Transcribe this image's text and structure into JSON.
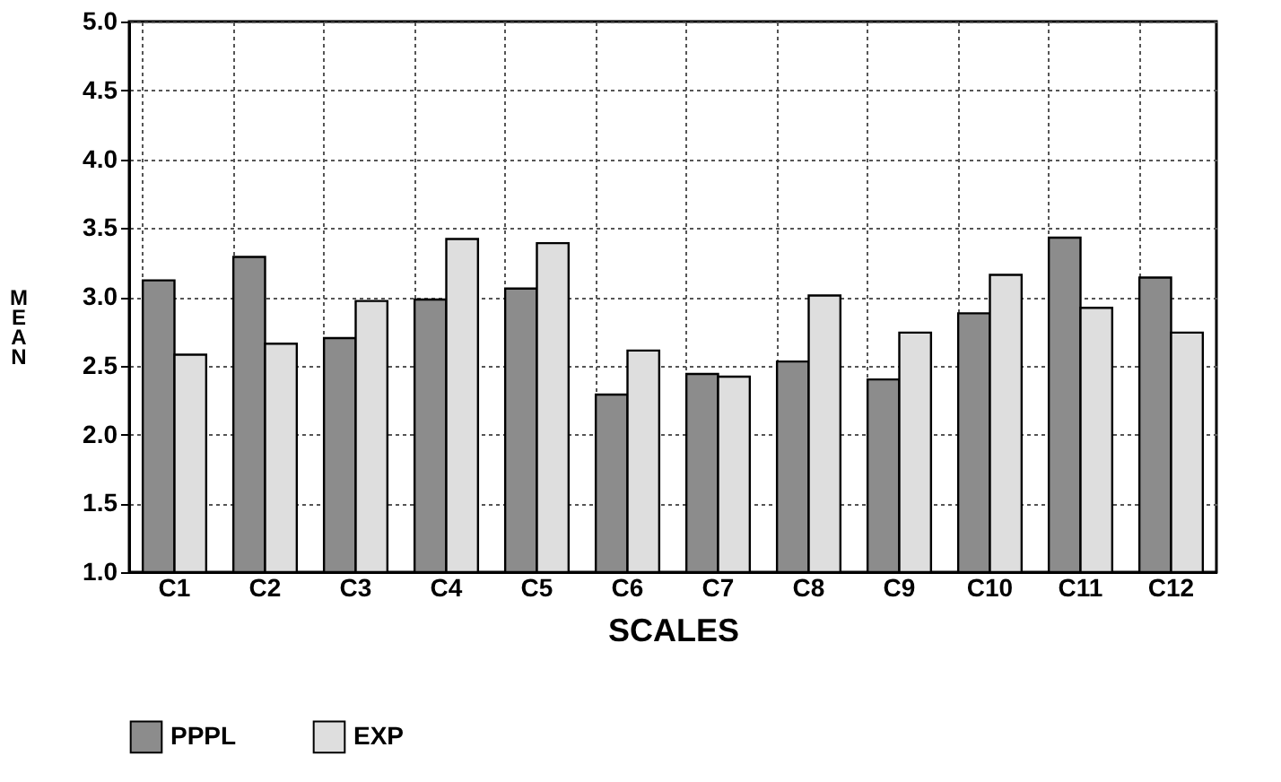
{
  "chart_data": {
    "type": "bar",
    "xlabel": "SCALES",
    "ylabel": "MEAN",
    "categories": [
      "C1",
      "C2",
      "C3",
      "C4",
      "C5",
      "C6",
      "C7",
      "C8",
      "C9",
      "C10",
      "C11",
      "C12"
    ],
    "series": [
      {
        "name": "PPPL",
        "color": "#8c8c8c",
        "values": [
          3.12,
          3.29,
          2.7,
          2.98,
          3.06,
          2.29,
          2.44,
          2.53,
          2.4,
          2.88,
          3.43,
          3.14
        ]
      },
      {
        "name": "EXP",
        "color": "#dedede",
        "values": [
          2.58,
          2.66,
          2.97,
          3.42,
          3.39,
          2.61,
          2.42,
          3.01,
          2.74,
          3.16,
          2.92,
          2.74
        ]
      }
    ],
    "ylim": [
      1.0,
      5.0
    ],
    "yticks": [
      {
        "value": 1,
        "label": "1.0"
      },
      {
        "value": 1.5,
        "label": "1.5"
      },
      {
        "value": 2,
        "label": "2.0"
      },
      {
        "value": 2.5,
        "label": "2.5"
      },
      {
        "value": 3,
        "label": "3.0"
      },
      {
        "value": 3.5,
        "label": "3.5"
      },
      {
        "value": 4,
        "label": "4.0"
      },
      {
        "value": 4.5,
        "label": "4.5"
      },
      {
        "value": 5,
        "label": "5.0"
      }
    ],
    "grid": true,
    "legend": "bottom"
  }
}
